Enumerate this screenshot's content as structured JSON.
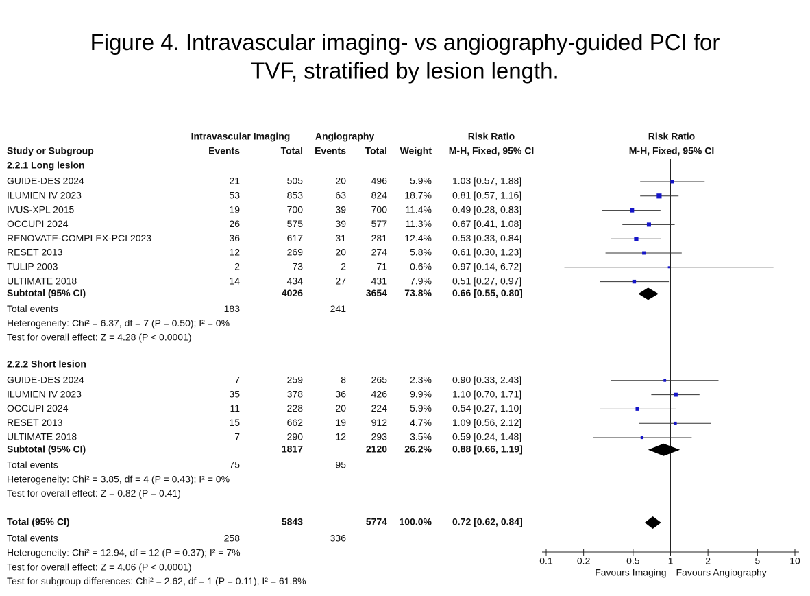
{
  "title_prefix": "Figure 4.",
  "title_lines": [
    "Intravascular imaging- vs angiography-guided PCI for",
    "TVF, stratified by lesion length."
  ],
  "chart_data": {
    "type": "forest",
    "headers": {
      "group_i": "Intravascular Imaging",
      "group_a": "Angiography",
      "study": "Study or Subgroup",
      "events": "Events",
      "total": "Total",
      "weight": "Weight",
      "rr": "Risk Ratio",
      "method": "M-H, Fixed, 95% CI"
    },
    "color": "#1515c8",
    "log_x": true,
    "xlim": [
      0.1,
      10
    ],
    "xticks": [
      0.1,
      0.2,
      0.5,
      1,
      2,
      5,
      10
    ],
    "favours_left": "Favours Imaging",
    "favours_right": "Favours Angiography",
    "subgroups": [
      {
        "name": "2.2.1 Long lesion",
        "studies": [
          {
            "name": "GUIDE-DES 2024",
            "events_i": 21,
            "total_i": 505,
            "events_a": 20,
            "total_a": 496,
            "weight": 5.9,
            "weight_label": "5.9%",
            "rr": 1.03,
            "lo": 0.57,
            "hi": 1.88,
            "rr_label": "1.03 [0.57, 1.88]"
          },
          {
            "name": "ILUMIEN IV 2023",
            "events_i": 53,
            "total_i": 853,
            "events_a": 63,
            "total_a": 824,
            "weight": 18.7,
            "weight_label": "18.7%",
            "rr": 0.81,
            "lo": 0.57,
            "hi": 1.16,
            "rr_label": "0.81 [0.57, 1.16]"
          },
          {
            "name": "IVUS-XPL 2015",
            "events_i": 19,
            "total_i": 700,
            "events_a": 39,
            "total_a": 700,
            "weight": 11.4,
            "weight_label": "11.4%",
            "rr": 0.49,
            "lo": 0.28,
            "hi": 0.83,
            "rr_label": "0.49 [0.28, 0.83]"
          },
          {
            "name": "OCCUPI 2024",
            "events_i": 26,
            "total_i": 575,
            "events_a": 39,
            "total_a": 577,
            "weight": 11.3,
            "weight_label": "11.3%",
            "rr": 0.67,
            "lo": 0.41,
            "hi": 1.08,
            "rr_label": "0.67 [0.41, 1.08]"
          },
          {
            "name": "RENOVATE-COMPLEX-PCI 2023",
            "events_i": 36,
            "total_i": 617,
            "events_a": 31,
            "total_a": 281,
            "weight": 12.4,
            "weight_label": "12.4%",
            "rr": 0.53,
            "lo": 0.33,
            "hi": 0.84,
            "rr_label": "0.53 [0.33, 0.84]"
          },
          {
            "name": "RESET 2013",
            "events_i": 12,
            "total_i": 269,
            "events_a": 20,
            "total_a": 274,
            "weight": 5.8,
            "weight_label": "5.8%",
            "rr": 0.61,
            "lo": 0.3,
            "hi": 1.23,
            "rr_label": "0.61 [0.30, 1.23]"
          },
          {
            "name": "TULIP 2003",
            "events_i": 2,
            "total_i": 73,
            "events_a": 2,
            "total_a": 71,
            "weight": 0.6,
            "weight_label": "0.6%",
            "rr": 0.97,
            "lo": 0.14,
            "hi": 6.72,
            "rr_label": "0.97 [0.14, 6.72]"
          },
          {
            "name": "ULTIMATE 2018",
            "events_i": 14,
            "total_i": 434,
            "events_a": 27,
            "total_a": 431,
            "weight": 7.9,
            "weight_label": "7.9%",
            "rr": 0.51,
            "lo": 0.27,
            "hi": 0.97,
            "rr_label": "0.51 [0.27, 0.97]"
          }
        ],
        "subtotal": {
          "name": "Subtotal (95% CI)",
          "total_i": 4026,
          "total_a": 3654,
          "weight": 73.8,
          "weight_label": "73.8%",
          "rr": 0.66,
          "lo": 0.55,
          "hi": 0.8,
          "rr_label": "0.66 [0.55, 0.80]"
        },
        "events": {
          "name": "Total events",
          "events_i": 183,
          "events_a": 241
        },
        "notes": [
          "Heterogeneity: Chi² = 6.37, df = 7 (P = 0.50); I² = 0%",
          "Test for overall effect: Z = 4.28 (P < 0.0001)"
        ]
      },
      {
        "name": "2.2.2 Short lesion",
        "studies": [
          {
            "name": "GUIDE-DES 2024",
            "events_i": 7,
            "total_i": 259,
            "events_a": 8,
            "total_a": 265,
            "weight": 2.3,
            "weight_label": "2.3%",
            "rr": 0.9,
            "lo": 0.33,
            "hi": 2.43,
            "rr_label": "0.90 [0.33, 2.43]"
          },
          {
            "name": "ILUMIEN IV 2023",
            "events_i": 35,
            "total_i": 378,
            "events_a": 36,
            "total_a": 426,
            "weight": 9.9,
            "weight_label": "9.9%",
            "rr": 1.1,
            "lo": 0.7,
            "hi": 1.71,
            "rr_label": "1.10 [0.70, 1.71]"
          },
          {
            "name": "OCCUPI 2024",
            "events_i": 11,
            "total_i": 228,
            "events_a": 20,
            "total_a": 224,
            "weight": 5.9,
            "weight_label": "5.9%",
            "rr": 0.54,
            "lo": 0.27,
            "hi": 1.1,
            "rr_label": "0.54 [0.27, 1.10]"
          },
          {
            "name": "RESET 2013",
            "events_i": 15,
            "total_i": 662,
            "events_a": 19,
            "total_a": 912,
            "weight": 4.7,
            "weight_label": "4.7%",
            "rr": 1.09,
            "lo": 0.56,
            "hi": 2.12,
            "rr_label": "1.09 [0.56, 2.12]"
          },
          {
            "name": "ULTIMATE 2018",
            "events_i": 7,
            "total_i": 290,
            "events_a": 12,
            "total_a": 293,
            "weight": 3.5,
            "weight_label": "3.5%",
            "rr": 0.59,
            "lo": 0.24,
            "hi": 1.48,
            "rr_label": "0.59 [0.24, 1.48]"
          }
        ],
        "subtotal": {
          "name": "Subtotal (95% CI)",
          "total_i": 1817,
          "total_a": 2120,
          "weight": 26.2,
          "weight_label": "26.2%",
          "rr": 0.88,
          "lo": 0.66,
          "hi": 1.19,
          "rr_label": "0.88 [0.66, 1.19]"
        },
        "events": {
          "name": "Total events",
          "events_i": 75,
          "events_a": 95
        },
        "notes": [
          "Heterogeneity: Chi² = 3.85, df = 4 (P = 0.43); I² = 0%",
          "Test for overall effect: Z = 0.82 (P = 0.41)"
        ]
      }
    ],
    "total": {
      "name": "Total (95% CI)",
      "total_i": 5843,
      "total_a": 5774,
      "weight": 100.0,
      "weight_label": "100.0%",
      "rr": 0.72,
      "lo": 0.62,
      "hi": 0.84,
      "rr_label": "0.72 [0.62, 0.84]"
    },
    "total_events": {
      "name": "Total events",
      "events_i": 258,
      "events_a": 336
    },
    "total_notes": [
      "Heterogeneity: Chi² = 12.94, df = 12 (P = 0.37); I² = 7%",
      "Test for overall effect: Z = 4.06 (P < 0.0001)",
      "Test for subgroup differences: Chi² = 2.62, df = 1 (P = 0.11), I² = 61.8%"
    ]
  }
}
